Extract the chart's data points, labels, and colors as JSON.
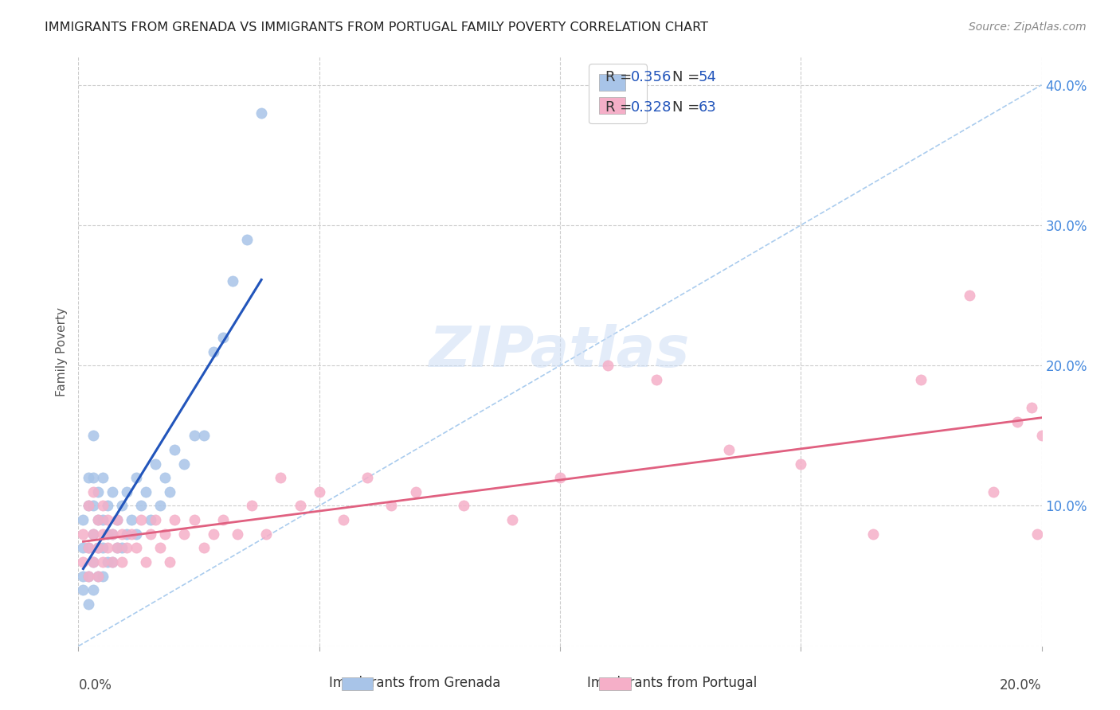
{
  "title": "IMMIGRANTS FROM GRENADA VS IMMIGRANTS FROM PORTUGAL FAMILY POVERTY CORRELATION CHART",
  "source": "Source: ZipAtlas.com",
  "ylabel": "Family Poverty",
  "xlim": [
    0.0,
    0.2
  ],
  "ylim": [
    0.0,
    0.42
  ],
  "grenada_R": 0.356,
  "grenada_N": 54,
  "portugal_R": 0.328,
  "portugal_N": 63,
  "grenada_color": "#a8c4e8",
  "portugal_color": "#f5afc8",
  "grenada_line_color": "#2255bb",
  "portugal_line_color": "#e06080",
  "ref_line_color": "#aaccee",
  "background_color": "#ffffff",
  "grenada_x": [
    0.001,
    0.001,
    0.001,
    0.001,
    0.002,
    0.002,
    0.002,
    0.002,
    0.002,
    0.003,
    0.003,
    0.003,
    0.003,
    0.003,
    0.003,
    0.004,
    0.004,
    0.004,
    0.004,
    0.005,
    0.005,
    0.005,
    0.005,
    0.006,
    0.006,
    0.006,
    0.007,
    0.007,
    0.007,
    0.008,
    0.008,
    0.009,
    0.009,
    0.01,
    0.01,
    0.011,
    0.012,
    0.012,
    0.013,
    0.014,
    0.015,
    0.016,
    0.017,
    0.018,
    0.019,
    0.02,
    0.022,
    0.024,
    0.026,
    0.028,
    0.03,
    0.032,
    0.035,
    0.038
  ],
  "grenada_y": [
    0.04,
    0.05,
    0.07,
    0.09,
    0.03,
    0.05,
    0.07,
    0.1,
    0.12,
    0.04,
    0.06,
    0.08,
    0.1,
    0.12,
    0.15,
    0.05,
    0.07,
    0.09,
    0.11,
    0.05,
    0.07,
    0.09,
    0.12,
    0.06,
    0.08,
    0.1,
    0.06,
    0.08,
    0.11,
    0.07,
    0.09,
    0.07,
    0.1,
    0.08,
    0.11,
    0.09,
    0.08,
    0.12,
    0.1,
    0.11,
    0.09,
    0.13,
    0.1,
    0.12,
    0.11,
    0.14,
    0.13,
    0.15,
    0.15,
    0.21,
    0.22,
    0.26,
    0.29,
    0.38
  ],
  "portugal_x": [
    0.001,
    0.001,
    0.002,
    0.002,
    0.002,
    0.003,
    0.003,
    0.003,
    0.004,
    0.004,
    0.004,
    0.005,
    0.005,
    0.005,
    0.006,
    0.006,
    0.007,
    0.007,
    0.008,
    0.008,
    0.009,
    0.009,
    0.01,
    0.011,
    0.012,
    0.013,
    0.014,
    0.015,
    0.016,
    0.017,
    0.018,
    0.019,
    0.02,
    0.022,
    0.024,
    0.026,
    0.028,
    0.03,
    0.033,
    0.036,
    0.039,
    0.042,
    0.046,
    0.05,
    0.055,
    0.06,
    0.065,
    0.07,
    0.08,
    0.09,
    0.1,
    0.11,
    0.12,
    0.135,
    0.15,
    0.165,
    0.175,
    0.185,
    0.19,
    0.195,
    0.198,
    0.199,
    0.2
  ],
  "portugal_y": [
    0.06,
    0.08,
    0.05,
    0.07,
    0.1,
    0.06,
    0.08,
    0.11,
    0.05,
    0.07,
    0.09,
    0.06,
    0.08,
    0.1,
    0.07,
    0.09,
    0.06,
    0.08,
    0.07,
    0.09,
    0.06,
    0.08,
    0.07,
    0.08,
    0.07,
    0.09,
    0.06,
    0.08,
    0.09,
    0.07,
    0.08,
    0.06,
    0.09,
    0.08,
    0.09,
    0.07,
    0.08,
    0.09,
    0.08,
    0.1,
    0.08,
    0.12,
    0.1,
    0.11,
    0.09,
    0.12,
    0.1,
    0.11,
    0.1,
    0.09,
    0.12,
    0.2,
    0.19,
    0.14,
    0.13,
    0.08,
    0.19,
    0.25,
    0.11,
    0.16,
    0.17,
    0.08,
    0.15
  ]
}
